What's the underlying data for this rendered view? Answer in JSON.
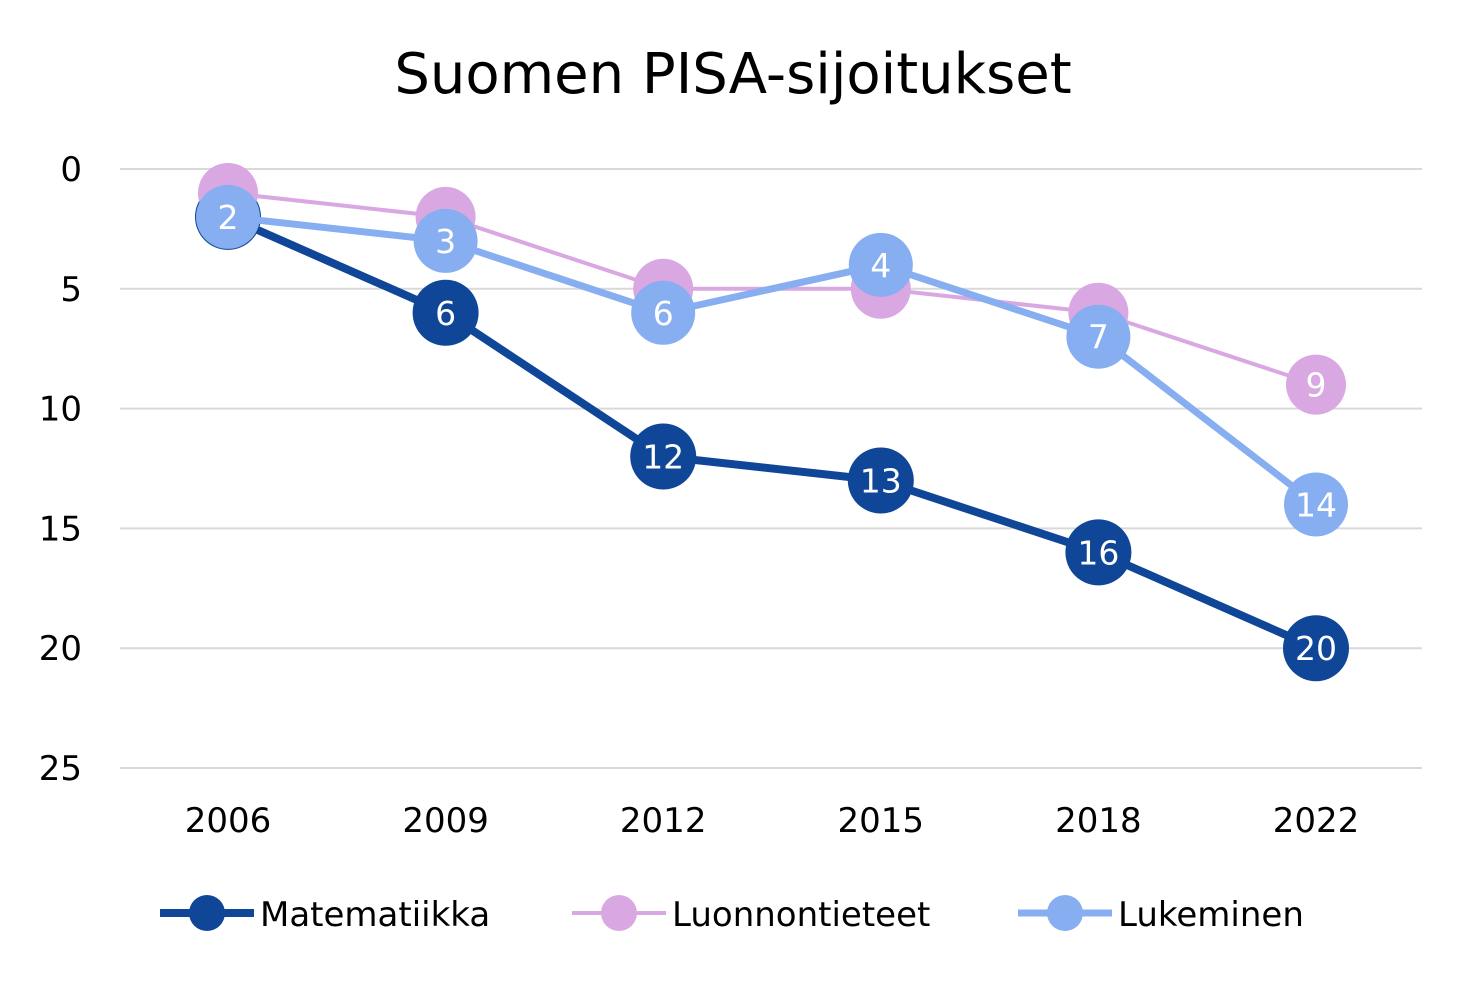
{
  "chart_data": {
    "type": "line",
    "title": "Suomen PISA-sijoitukset",
    "xlabel": "",
    "ylabel": "",
    "categories": [
      "2006",
      "2009",
      "2012",
      "2015",
      "2018",
      "2022"
    ],
    "ylim": [
      0,
      25
    ],
    "y_reversed": true,
    "yticks": [
      "0",
      "5",
      "10",
      "15",
      "20",
      "25"
    ],
    "grid": true,
    "legend_position": "bottom",
    "series": [
      {
        "name": "Matematiikka",
        "color": "#0f4698",
        "values": [
          2,
          6,
          12,
          13,
          16,
          20
        ],
        "labels_shown": [
          false,
          true,
          true,
          true,
          true,
          true
        ]
      },
      {
        "name": "Luonnontieteet",
        "color": "#d9a8e2",
        "values": [
          1,
          2,
          5,
          5,
          6,
          9
        ],
        "labels_shown": [
          false,
          false,
          false,
          false,
          false,
          true
        ]
      },
      {
        "name": "Lukeminen",
        "color": "#86aef0",
        "values": [
          2,
          3,
          6,
          4,
          7,
          14
        ],
        "labels_shown": [
          true,
          true,
          true,
          true,
          true,
          true
        ]
      }
    ]
  }
}
